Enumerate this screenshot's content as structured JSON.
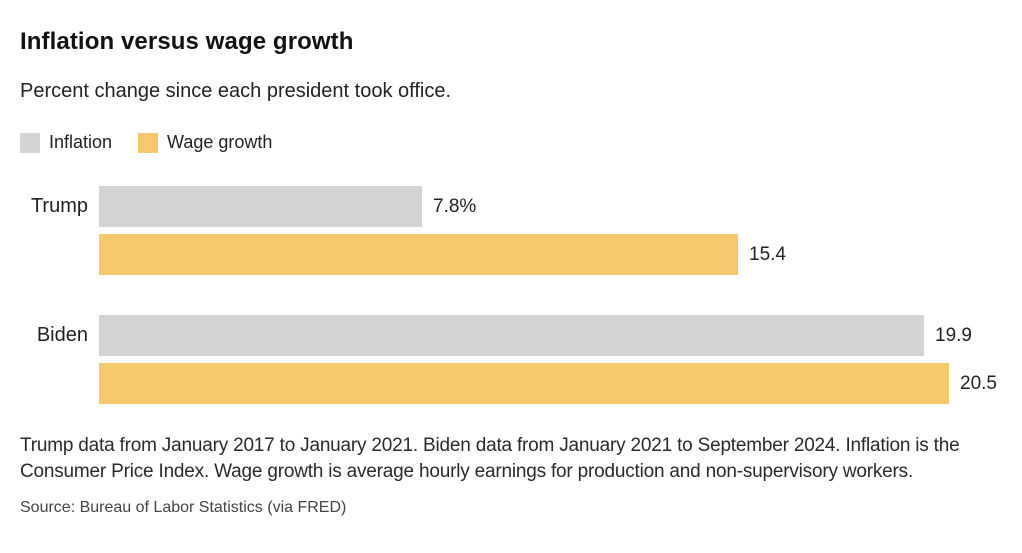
{
  "chart_data": {
    "type": "bar",
    "orientation": "horizontal",
    "title": "Inflation versus wage growth",
    "subtitle": "Percent change since each president took office.",
    "categories": [
      "Trump",
      "Biden"
    ],
    "series": [
      {
        "name": "Inflation",
        "color": "#d4d4d4",
        "values": [
          7.8,
          19.9
        ],
        "labels": [
          "7.8%",
          "19.9"
        ]
      },
      {
        "name": "Wage growth",
        "color": "#f6c96c",
        "values": [
          15.4,
          20.5
        ],
        "labels": [
          "15.4",
          "20.5"
        ]
      }
    ],
    "xlim": [
      0,
      20.5
    ],
    "grid": false,
    "legend_position": "top-left"
  },
  "notes": "Trump data from January 2017 to January 2021. Biden data from January 2021 to September 2024. Inflation is the Consumer Price Index. Wage growth is average hourly earnings for production and non-supervisory workers.",
  "source": "Source: Bureau of Labor Statistics (via FRED)"
}
